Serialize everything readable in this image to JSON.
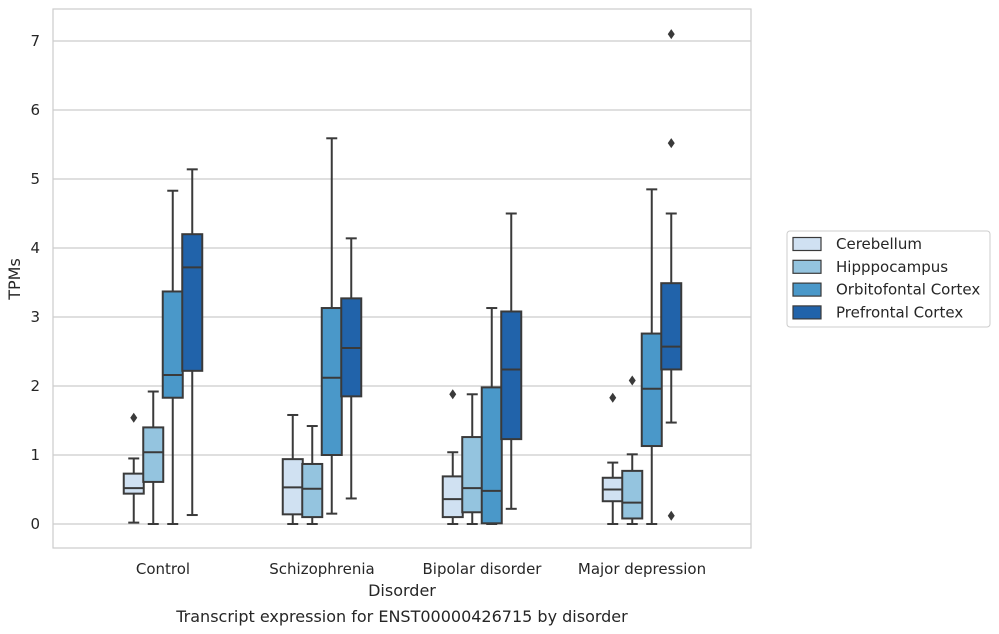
{
  "chart_data": {
    "type": "box",
    "title": "",
    "caption": "Transcript expression for ENST00000426715 by disorder",
    "xlabel": "Disorder",
    "ylabel": "TPMs",
    "ylim": [
      -0.35,
      7.45
    ],
    "yticks": [
      0,
      1,
      2,
      3,
      4,
      5,
      6,
      7
    ],
    "ytick_labels": [
      "0",
      "1",
      "2",
      "3",
      "4",
      "5",
      "6",
      "7"
    ],
    "grid": true,
    "legend_position": "right",
    "categories": [
      "Control",
      "Schizophrenia",
      "Bipolar disorder",
      "Major depression"
    ],
    "series": [
      {
        "name": "Cerebellum",
        "color": "#d0e1f2",
        "boxes": [
          {
            "whislo": 0.02,
            "q1": 0.44,
            "med": 0.52,
            "q3": 0.73,
            "whishi": 0.95,
            "fliers": [
              1.54
            ]
          },
          {
            "whislo": 0.0,
            "q1": 0.14,
            "med": 0.53,
            "q3": 0.94,
            "whishi": 1.58,
            "fliers": []
          },
          {
            "whislo": 0.0,
            "q1": 0.1,
            "med": 0.36,
            "q3": 0.69,
            "whishi": 1.04,
            "fliers": [
              1.88
            ]
          },
          {
            "whislo": 0.0,
            "q1": 0.33,
            "med": 0.5,
            "q3": 0.67,
            "whishi": 0.89,
            "fliers": [
              1.83
            ]
          }
        ]
      },
      {
        "name": "Hipppocampus",
        "color": "#94c4df",
        "boxes": [
          {
            "whislo": 0.0,
            "q1": 0.61,
            "med": 1.04,
            "q3": 1.4,
            "whishi": 1.92,
            "fliers": []
          },
          {
            "whislo": 0.0,
            "q1": 0.1,
            "med": 0.51,
            "q3": 0.87,
            "whishi": 1.42,
            "fliers": []
          },
          {
            "whislo": 0.0,
            "q1": 0.17,
            "med": 0.52,
            "q3": 1.26,
            "whishi": 1.88,
            "fliers": []
          },
          {
            "whislo": 0.0,
            "q1": 0.08,
            "med": 0.31,
            "q3": 0.77,
            "whishi": 1.01,
            "fliers": [
              2.08
            ]
          }
        ]
      },
      {
        "name": "Orbitofontal Cortex",
        "color": "#4a98c9",
        "boxes": [
          {
            "whislo": 0.0,
            "q1": 1.83,
            "med": 2.16,
            "q3": 3.37,
            "whishi": 4.83,
            "fliers": []
          },
          {
            "whislo": 0.15,
            "q1": 1.0,
            "med": 2.12,
            "q3": 3.13,
            "whishi": 5.59,
            "fliers": []
          },
          {
            "whislo": 0.0,
            "q1": 0.01,
            "med": 0.48,
            "q3": 1.98,
            "whishi": 3.13,
            "fliers": []
          },
          {
            "whislo": 0.0,
            "q1": 1.13,
            "med": 1.96,
            "q3": 2.76,
            "whishi": 4.85,
            "fliers": []
          }
        ]
      },
      {
        "name": "Prefrontal Cortex",
        "color": "#2163aa",
        "boxes": [
          {
            "whislo": 0.13,
            "q1": 2.22,
            "med": 3.72,
            "q3": 4.2,
            "whishi": 5.14,
            "fliers": []
          },
          {
            "whislo": 0.37,
            "q1": 1.85,
            "med": 2.55,
            "q3": 3.27,
            "whishi": 4.14,
            "fliers": []
          },
          {
            "whislo": 0.22,
            "q1": 1.23,
            "med": 2.24,
            "q3": 3.08,
            "whishi": 4.5,
            "fliers": []
          },
          {
            "whislo": 1.47,
            "q1": 2.24,
            "med": 2.57,
            "q3": 3.49,
            "whishi": 4.5,
            "fliers": [
              0.12,
              5.52,
              7.1
            ]
          }
        ]
      }
    ]
  }
}
